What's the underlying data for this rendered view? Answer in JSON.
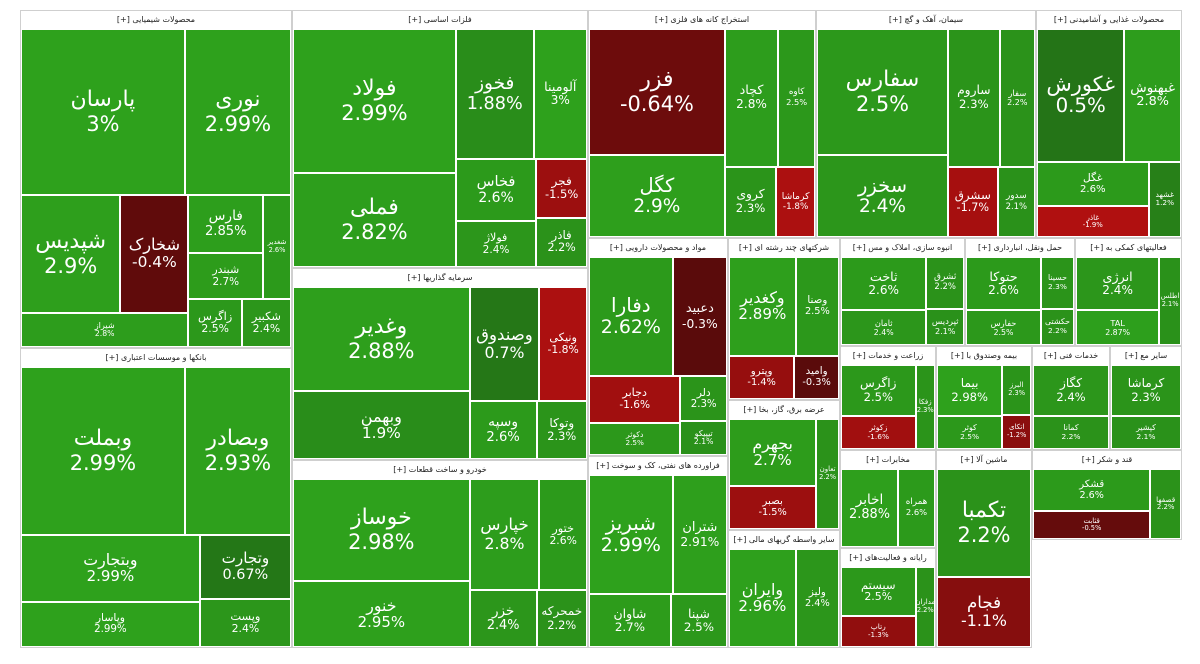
{
  "chart_data": {
    "type": "treemap",
    "title": "",
    "color_scale": {
      "min": -3,
      "max": 3,
      "positive": "#2ea11c",
      "negative": "#b01010"
    },
    "sectors": [
      {
        "name": "محصولات شیمیایی [+]",
        "stocks": [
          {
            "symbol": "پارسان",
            "change": 3
          },
          {
            "symbol": "نوری",
            "change": 2.99
          },
          {
            "symbol": "شپدیس",
            "change": 2.9
          },
          {
            "symbol": "شخارک",
            "change": -0.4
          },
          {
            "symbol": "شیراز",
            "change": 2.8
          },
          {
            "symbol": "فارس",
            "change": 2.85
          },
          {
            "symbol": "شبندر",
            "change": 2.7
          },
          {
            "symbol": "شغدیر",
            "change": 2.6
          },
          {
            "symbol": "زاگرس",
            "change": 2.5
          },
          {
            "symbol": "شکبیر",
            "change": 2.4
          }
        ]
      },
      {
        "name": "فلزات اساسی [+]",
        "stocks": [
          {
            "symbol": "فولاد",
            "change": 2.99
          },
          {
            "symbol": "فملی",
            "change": 2.82
          },
          {
            "symbol": "فخوز",
            "change": 1.88
          },
          {
            "symbol": "آلومینا",
            "change": 3
          },
          {
            "symbol": "فخاس",
            "change": 2.6
          },
          {
            "symbol": "فولاژ",
            "change": 2.4
          },
          {
            "symbol": "فجر",
            "change": -1.5
          },
          {
            "symbol": "فاذر",
            "change": 2.2
          }
        ]
      },
      {
        "name": "استخراج کانه های فلزی [+]",
        "stocks": [
          {
            "symbol": "فزر",
            "change": -0.64
          },
          {
            "symbol": "کگل",
            "change": 2.9
          },
          {
            "symbol": "کچاد",
            "change": 2.8
          },
          {
            "symbol": "کاوه",
            "change": 2.5
          },
          {
            "symbol": "کروی",
            "change": 2.3
          },
          {
            "symbol": "کرماشا",
            "change": -1.8
          }
        ]
      },
      {
        "name": "سیمان، آهک و گچ [+]",
        "stocks": [
          {
            "symbol": "سفارس",
            "change": 2.5
          },
          {
            "symbol": "سخزر",
            "change": 2.4
          },
          {
            "symbol": "ساروم",
            "change": 2.3
          },
          {
            "symbol": "سفار",
            "change": 2.2
          },
          {
            "symbol": "سشرق",
            "change": -1.7
          },
          {
            "symbol": "سدور",
            "change": 2.1
          }
        ]
      },
      {
        "name": "محصولات غذایی و آشامیدنی [+]",
        "stocks": [
          {
            "symbol": "غکورش",
            "change": 0.5
          },
          {
            "symbol": "غبهنوش",
            "change": 2.8
          },
          {
            "symbol": "غگل",
            "change": 2.6
          },
          {
            "symbol": "غاذر",
            "change": -1.9
          },
          {
            "symbol": "غشهد",
            "change": 1.2
          }
        ]
      },
      {
        "name": "بانکها و موسسات اعتباری [+]",
        "stocks": [
          {
            "symbol": "وبملت",
            "change": 2.99
          },
          {
            "symbol": "وبصادر",
            "change": 2.93
          },
          {
            "symbol": "وبتجارت",
            "change": 2.99
          },
          {
            "symbol": "وپاسار",
            "change": 2.99
          },
          {
            "symbol": "وتجارت",
            "change": 0.67
          },
          {
            "symbol": "وپست",
            "change": 2.4
          }
        ]
      },
      {
        "name": "سرمایه گذاریها [+]",
        "stocks": [
          {
            "symbol": "وغدیر",
            "change": 2.88
          },
          {
            "symbol": "وبهمن",
            "change": 1.9
          },
          {
            "symbol": "وصندوق",
            "change": 0.7
          },
          {
            "symbol": "ونیکی",
            "change": -1.8
          },
          {
            "symbol": "وسپه",
            "change": 2.6
          },
          {
            "symbol": "وتوکا",
            "change": 2.3
          }
        ]
      },
      {
        "name": "خودرو و ساخت قطعات [+]",
        "stocks": [
          {
            "symbol": "خوساز",
            "change": 2.98
          },
          {
            "symbol": "خنور",
            "change": 2.95
          },
          {
            "symbol": "خپارس",
            "change": 2.8
          },
          {
            "symbol": "ختور",
            "change": 2.6
          },
          {
            "symbol": "خزر",
            "change": 2.4
          },
          {
            "symbol": "خمحرکه",
            "change": 2.2
          }
        ]
      },
      {
        "name": "مواد و محصولات دارویی [+]",
        "stocks": [
          {
            "symbol": "دفارا",
            "change": 2.62
          },
          {
            "symbol": "دعبید",
            "change": -0.3
          },
          {
            "symbol": "دجابر",
            "change": -1.6
          },
          {
            "symbol": "دکوثر",
            "change": 2.5
          },
          {
            "symbol": "دلر",
            "change": 2.3
          },
          {
            "symbol": "تیپیکو",
            "change": 2.1
          }
        ]
      },
      {
        "name": "شرکتهای چند رشته ای [+]",
        "stocks": [
          {
            "symbol": "وکغدیر",
            "change": 2.89
          },
          {
            "symbol": "وصنا",
            "change": 2.5
          },
          {
            "symbol": "وپترو",
            "change": -1.4
          },
          {
            "symbol": "وامید",
            "change": -0.3
          }
        ]
      },
      {
        "name": "فراورده های نفتی، کک و سوخت [+]",
        "stocks": [
          {
            "symbol": "شبریز",
            "change": 2.99
          },
          {
            "symbol": "شتران",
            "change": 2.91
          },
          {
            "symbol": "شاوان",
            "change": 2.7
          },
          {
            "symbol": "شپنا",
            "change": 2.5
          }
        ]
      },
      {
        "name": "عرضه برق، گاز، بخا [+]",
        "stocks": [
          {
            "symbol": "بجهرم",
            "change": 2.7
          },
          {
            "symbol": "بصبر",
            "change": -1.5
          },
          {
            "symbol": "تعاون",
            "change": 2.2
          }
        ]
      },
      {
        "name": "سایر واسطه گریهای مالی [+]",
        "stocks": [
          {
            "symbol": "وایران",
            "change": 2.96
          },
          {
            "symbol": "ولیز",
            "change": 2.4
          }
        ]
      },
      {
        "name": "حمل ونقل، انبارداری [+]",
        "stocks": [
          {
            "symbol": "حتوکا",
            "change": 2.6
          },
          {
            "symbol": "حفارس",
            "change": 2.5
          },
          {
            "symbol": "حسینا",
            "change": 2.3
          },
          {
            "symbol": "حکشتی",
            "change": 2.2
          }
        ]
      },
      {
        "name": "فعالیتهای کمکی به [+]",
        "stocks": [
          {
            "symbol": "انرژی",
            "change": 2.4
          },
          {
            "symbol": "TAL",
            "change": 2.87
          },
          {
            "symbol": "اطلس",
            "change": 2.1
          }
        ]
      },
      {
        "name": "رایانه و فعالیت‌های [+]",
        "stocks": [
          {
            "symbol": "سیستم",
            "change": 2.5
          },
          {
            "symbol": "رتاپ",
            "change": -1.3
          },
          {
            "symbol": "مداران",
            "change": 2.2
          }
        ]
      },
      {
        "name": "مخابرات [+]",
        "stocks": [
          {
            "symbol": "اخابر",
            "change": 2.88
          },
          {
            "symbol": "همراه",
            "change": 2.6
          }
        ]
      },
      {
        "name": "زراعت و خدمات [+]",
        "stocks": [
          {
            "symbol": "زاگرس",
            "change": 2.5
          },
          {
            "symbol": "زکوثر",
            "change": -1.6
          },
          {
            "symbol": "زفکا",
            "change": 2.3
          }
        ]
      },
      {
        "name": "بیمه وصندوق با [+]",
        "stocks": [
          {
            "symbol": "بیما",
            "change": 2.98
          },
          {
            "symbol": "کوثر",
            "change": 2.5
          },
          {
            "symbol": "البرز",
            "change": 2.3
          },
          {
            "symbol": "اتکای",
            "change": -1.2
          }
        ]
      },
      {
        "name": "خدمات فنی [+]",
        "stocks": [
          {
            "symbol": "کگاز",
            "change": 2.4
          },
          {
            "symbol": "کمانا",
            "change": 2.2
          }
        ]
      },
      {
        "name": "سایر مع [+]",
        "stocks": [
          {
            "symbol": "کرماشا",
            "change": 2.3
          },
          {
            "symbol": "کپشیر",
            "change": 2.1
          }
        ]
      },
      {
        "name": "انبوه سازی، املاک و مس [+]",
        "stocks": [
          {
            "symbol": "ثاخت",
            "change": 2.6
          },
          {
            "symbol": "ثامان",
            "change": 2.4
          },
          {
            "symbol": "ثشرق",
            "change": 2.2
          },
          {
            "symbol": "ثپردیس",
            "change": 2.1
          }
        ]
      },
      {
        "name": "قند و شکر [+]",
        "stocks": [
          {
            "symbol": "قشکر",
            "change": 2.6
          },
          {
            "symbol": "قثابت",
            "change": -0.5
          },
          {
            "symbol": "قصفها",
            "change": 2.2
          }
        ]
      },
      {
        "name": "ماشین آلا [+]",
        "stocks": [
          {
            "symbol": "تکمبا",
            "change": 2.2
          },
          {
            "symbol": "فجام",
            "change": -1.1
          }
        ]
      }
    ]
  }
}
